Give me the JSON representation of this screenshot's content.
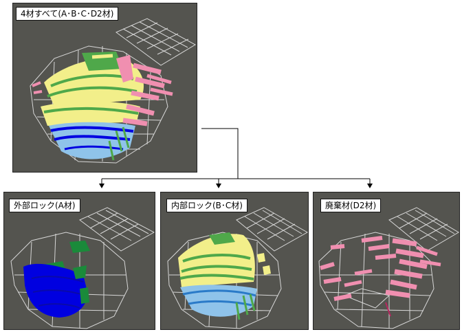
{
  "panels": {
    "top": {
      "label": "4材すべて(A･B･C･D2材)"
    },
    "left": {
      "label": "外部ロック(A材)"
    },
    "mid": {
      "label": "内部ロック(B･C材)"
    },
    "right": {
      "label": "廃棄材(D2材)"
    }
  },
  "colors": {
    "background": "#54544f",
    "mesh": "#e6e6e6",
    "material_a": "#0000e0",
    "material_a_inner": "#1a8a3a",
    "material_b": "#f2ef8a",
    "material_c": "#8fc3ea",
    "material_green": "#4fa84a",
    "material_d2": "#f08fb0"
  }
}
